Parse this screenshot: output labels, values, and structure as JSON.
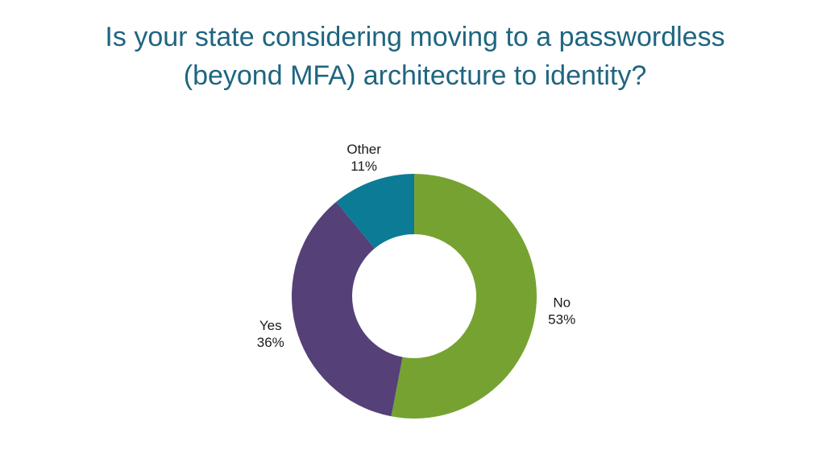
{
  "chart_data": {
    "type": "pie",
    "variant": "donut",
    "title": [
      "Is your state considering moving to a passwordless",
      "(beyond MFA) architecture to identity?"
    ],
    "categories": [
      "No",
      "Yes",
      "Other"
    ],
    "values": [
      53,
      36,
      11
    ],
    "value_labels": [
      "53%",
      "36%",
      "11%"
    ],
    "colors": [
      "#76a232",
      "#554077",
      "#0b7b96"
    ],
    "title_color": "#1f6580",
    "start_angle_deg": 0,
    "direction": "clockwise",
    "legend": "none",
    "data_labels": "outside"
  }
}
